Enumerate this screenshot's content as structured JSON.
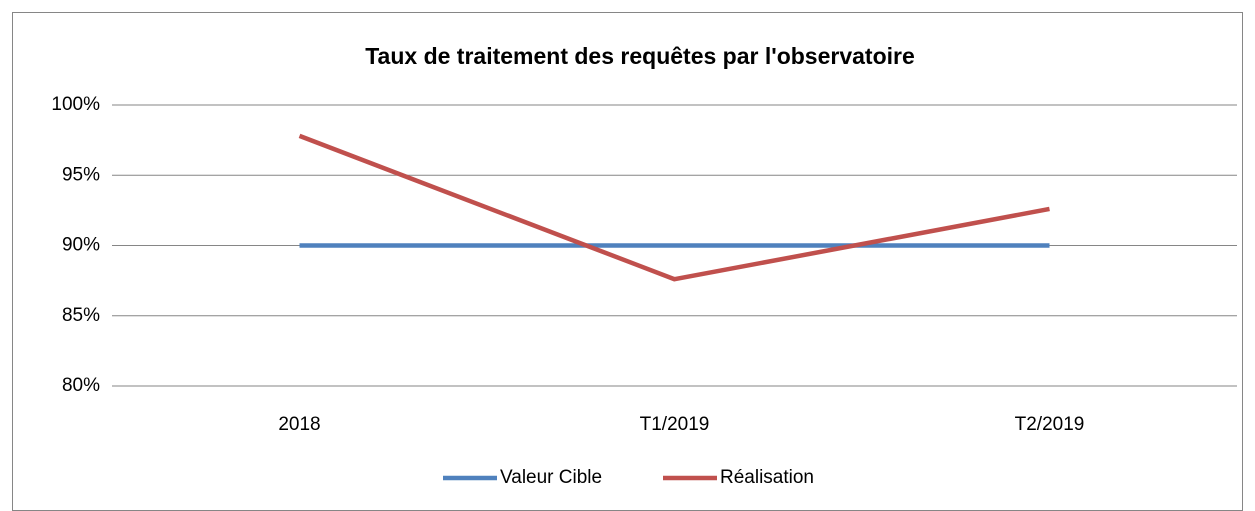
{
  "chart_data": {
    "type": "line",
    "title": "Taux de traitement des requêtes par l'observatoire",
    "categories": [
      "2018",
      "T1/2019",
      "T2/2019"
    ],
    "series": [
      {
        "name": "Valeur Cible",
        "color": "#4f81bd",
        "values": [
          90,
          90,
          90
        ]
      },
      {
        "name": "Réalisation",
        "color": "#c0504d",
        "values": [
          97.8,
          87.6,
          92.6
        ]
      }
    ],
    "ylim": [
      80,
      100
    ],
    "yticks": [
      {
        "value": 80,
        "label": "80%"
      },
      {
        "value": 85,
        "label": "85%"
      },
      {
        "value": 90,
        "label": "90%"
      },
      {
        "value": 95,
        "label": "95%"
      },
      {
        "value": 100,
        "label": "100%"
      }
    ],
    "grid": true,
    "legend": "bottom"
  }
}
